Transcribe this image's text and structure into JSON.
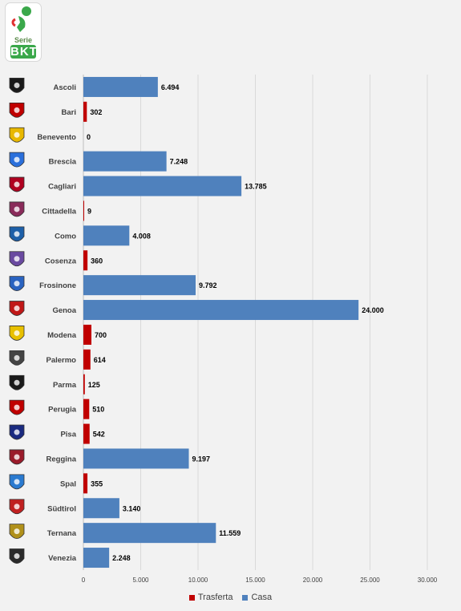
{
  "logo": {
    "serie_text": "Serie",
    "bkt_text": "BKT"
  },
  "chart_data": {
    "type": "bar",
    "orientation": "horizontal",
    "stacked": true,
    "categories": [
      "Ascoli",
      "Bari",
      "Benevento",
      "Brescia",
      "Cagliari",
      "Cittadella",
      "Como",
      "Cosenza",
      "Frosinone",
      "Genoa",
      "Modena",
      "Palermo",
      "Parma",
      "Perugia",
      "Pisa",
      "Reggina",
      "Spal",
      "Südtirol",
      "Ternana",
      "Venezia"
    ],
    "series": [
      {
        "name": "Trasferta",
        "color": "#c00000",
        "values": [
          0,
          302,
          0,
          0,
          0,
          9,
          0,
          360,
          0,
          0,
          700,
          614,
          125,
          510,
          542,
          0,
          355,
          0,
          0,
          0
        ]
      },
      {
        "name": "Casa",
        "color": "#4f81bd",
        "values": [
          6494,
          0,
          0,
          7248,
          13785,
          0,
          4008,
          0,
          9792,
          24000,
          0,
          0,
          0,
          0,
          0,
          9197,
          0,
          3140,
          11559,
          2248
        ]
      }
    ],
    "data_labels": [
      "6.494",
      "302",
      "0",
      "7.248",
      "13.785",
      "9",
      "4.008",
      "360",
      "9.792",
      "24.000",
      "700",
      "614",
      "125",
      "510",
      "542",
      "9.197",
      "355",
      "3.140",
      "11.559",
      "2.248"
    ],
    "xlim": [
      0,
      30000
    ],
    "xticks": [
      0,
      5000,
      10000,
      15000,
      20000,
      25000,
      30000
    ],
    "xtick_labels": [
      "0",
      "5.000",
      "10.000",
      "15.000",
      "20.000",
      "25.000",
      "30.000"
    ],
    "grid": true,
    "legend_position": "bottom"
  }
}
